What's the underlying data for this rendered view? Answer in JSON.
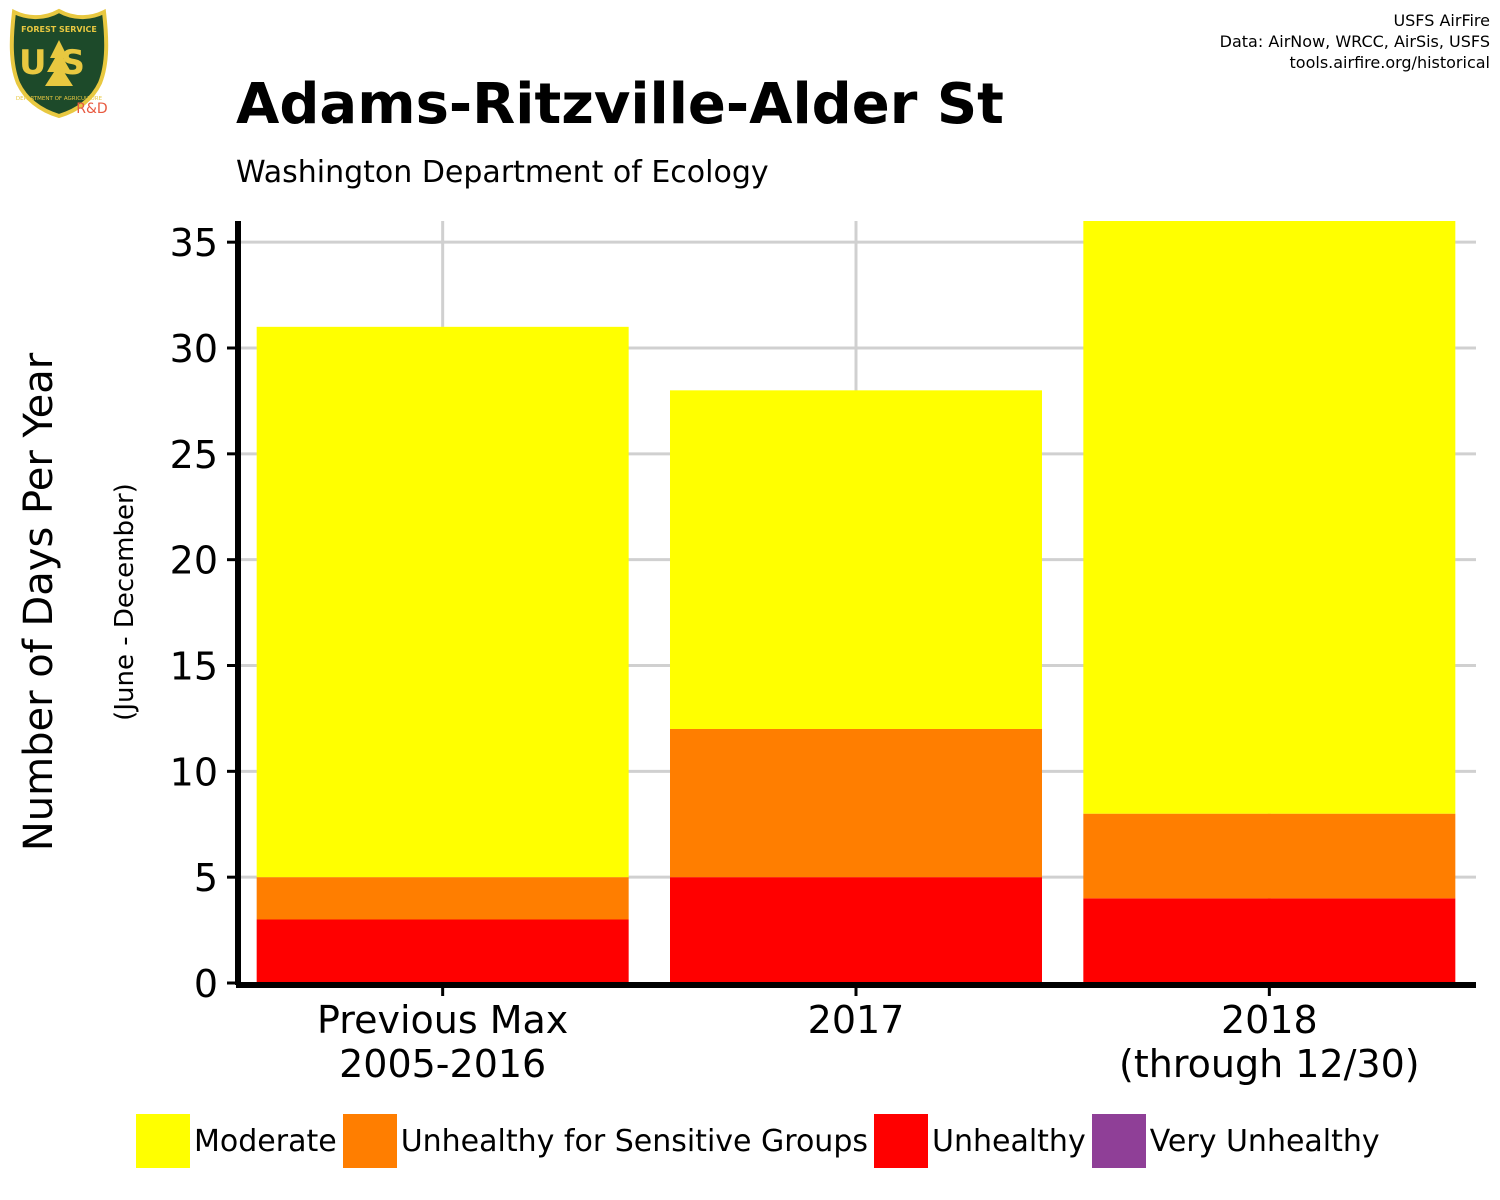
{
  "header": {
    "title": "Adams-Ritzville-Alder St",
    "subtitle": "Washington Department of Ecology",
    "credits": [
      "USFS AirFire",
      "Data: AirNow, WRCC, AirSis, USFS",
      "tools.airfire.org/historical"
    ]
  },
  "logo": {
    "icon": "usda-forest-service-shield-icon",
    "top_text": "FOREST SERVICE",
    "center_text": "US",
    "bottom_text": "DEPARTMENT OF AGRICULTURE",
    "badge": "R&D",
    "colors": {
      "shield": "#1d4a2a",
      "border": "#e8c840",
      "badge": "#e85a40"
    }
  },
  "chart_data": {
    "type": "bar",
    "stacked": true,
    "categories": [
      [
        "Previous Max",
        "2005-2016"
      ],
      [
        "2017"
      ],
      [
        "2018",
        "(through 12/30)"
      ]
    ],
    "series": [
      {
        "name": "Unhealthy",
        "color": "#ff0000",
        "values": [
          3,
          5,
          4
        ]
      },
      {
        "name": "Unhealthy for Sensitive Groups",
        "color": "#ff7e00",
        "values": [
          2,
          7,
          4
        ]
      },
      {
        "name": "Moderate",
        "color": "#ffff00",
        "values": [
          26,
          16,
          28
        ]
      },
      {
        "name": "Very Unhealthy",
        "color": "#8f3f97",
        "values": [
          0,
          0,
          0
        ]
      }
    ],
    "ylabel": "Number of Days Per Year",
    "ylabel_sub": "(June - December)",
    "yticks": [
      0,
      5,
      10,
      15,
      20,
      25,
      30,
      35
    ],
    "ylim": [
      0,
      36
    ],
    "grid": true,
    "legend_position": "bottom",
    "legend_order": [
      "Moderate",
      "Unhealthy for Sensitive Groups",
      "Unhealthy",
      "Very Unhealthy"
    ]
  }
}
